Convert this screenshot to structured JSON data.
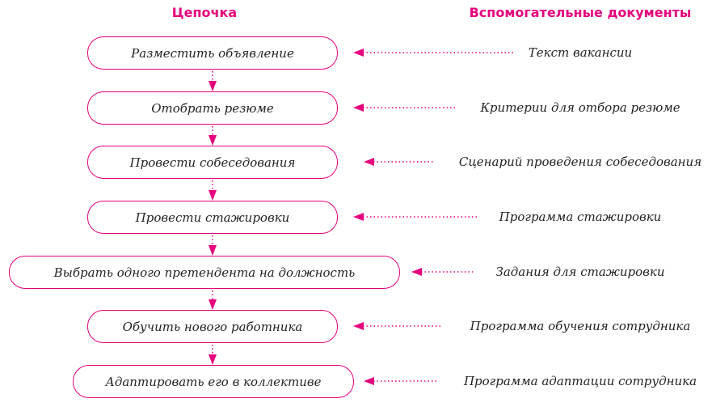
{
  "headers": {
    "chain": "Цепочка",
    "docs": "Вспомогательные документы"
  },
  "accent_color": "#e5007d",
  "steps": [
    {
      "label": "Разместить объявление",
      "doc": "Текст вакансии"
    },
    {
      "label": "Отобрать резюме",
      "doc": "Критерии для отбора резюме"
    },
    {
      "label": "Провести собеседования",
      "doc": "Сценарий проведения собеседования"
    },
    {
      "label": "Провести стажировки",
      "doc": "Программа стажировки"
    },
    {
      "label": "Выбрать одного претендента на должность",
      "doc": "Задания для стажировки"
    },
    {
      "label": "Обучить нового работника",
      "doc": "Программа обучения сотрудника"
    },
    {
      "label": "Адаптировать его в коллективе",
      "doc": "Программа адаптации сотрудника"
    }
  ]
}
